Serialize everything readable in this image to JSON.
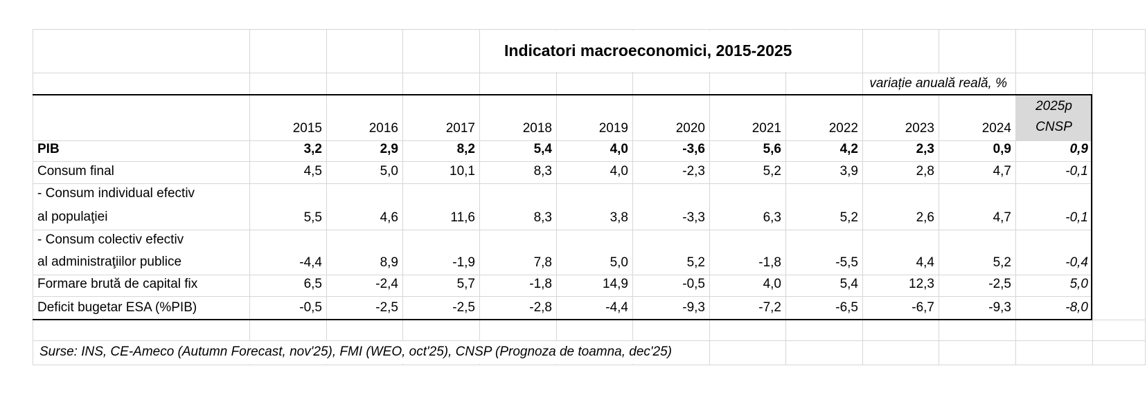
{
  "colors": {
    "background": "#ffffff",
    "grid_line": "#d6d6d6",
    "header_fill": "#d9d9d9",
    "thick_border": "#000000",
    "text": "#000000"
  },
  "table": {
    "title": "Indicatori macroeconomici, 2015-2025",
    "subtitle": "variație anuală reală, %",
    "columns": [
      "2015",
      "2016",
      "2017",
      "2018",
      "2019",
      "2020",
      "2021",
      "2022",
      "2023",
      "2024"
    ],
    "forecast_column": {
      "line1": "2025p",
      "line2": "CNSP"
    },
    "rows": [
      {
        "label": [
          "PIB"
        ],
        "bold": true,
        "values": [
          "3,2",
          "2,9",
          "8,2",
          "5,4",
          "4,0",
          "-3,6",
          "5,6",
          "4,2",
          "2,3",
          "0,9",
          "0,9"
        ]
      },
      {
        "label": [
          "Consum final"
        ],
        "bold": false,
        "values": [
          "4,5",
          "5,0",
          "10,1",
          "8,3",
          "4,0",
          "-2,3",
          "5,2",
          "3,9",
          "2,8",
          "4,7",
          "-0,1"
        ]
      },
      {
        "label": [
          "- Consum individual efectiv",
          "al populaţiei"
        ],
        "bold": false,
        "values": [
          "5,5",
          "4,6",
          "11,6",
          "8,3",
          "3,8",
          "-3,3",
          "6,3",
          "5,2",
          "2,6",
          "4,7",
          "-0,1"
        ]
      },
      {
        "label": [
          "- Consum colectiv efectiv",
          "al administraţiilor publice"
        ],
        "bold": false,
        "values": [
          "-4,4",
          "8,9",
          "-1,9",
          "7,8",
          "5,0",
          "5,2",
          "-1,8",
          "-5,5",
          "4,4",
          "5,2",
          "-0,4"
        ]
      },
      {
        "label": [
          "Formare brută de capital fix"
        ],
        "bold": false,
        "values": [
          "6,5",
          "-2,4",
          "5,7",
          "-1,8",
          "14,9",
          "-0,5",
          "4,0",
          "5,4",
          "12,3",
          "-2,5",
          "5,0"
        ]
      },
      {
        "label": [
          "Deficit bugetar ESA (%PIB)"
        ],
        "bold": false,
        "values": [
          "-0,5",
          "-2,5",
          "-2,5",
          "-2,8",
          "-4,4",
          "-9,3",
          "-7,2",
          "-6,5",
          "-6,7",
          "-9,3",
          "-8,0"
        ]
      }
    ],
    "source_note": "Surse: INS, CE-Ameco (Autumn Forecast, nov'25), FMI (WEO, oct'25), CNSP (Prognoza de toamna, dec'25)"
  },
  "chart_data": {
    "type": "table",
    "title": "Indicatori macroeconomici, 2015-2025",
    "unit": "variație anuală reală, %",
    "categories": [
      "2015",
      "2016",
      "2017",
      "2018",
      "2019",
      "2020",
      "2021",
      "2022",
      "2023",
      "2024",
      "2025p CNSP"
    ],
    "series": [
      {
        "name": "PIB",
        "values": [
          3.2,
          2.9,
          8.2,
          5.4,
          4.0,
          -3.6,
          5.6,
          4.2,
          2.3,
          0.9,
          0.9
        ]
      },
      {
        "name": "Consum final",
        "values": [
          4.5,
          5.0,
          10.1,
          8.3,
          4.0,
          -2.3,
          5.2,
          3.9,
          2.8,
          4.7,
          -0.1
        ]
      },
      {
        "name": "- Consum individual efectiv al populaţiei",
        "values": [
          5.5,
          4.6,
          11.6,
          8.3,
          3.8,
          -3.3,
          6.3,
          5.2,
          2.6,
          4.7,
          -0.1
        ]
      },
      {
        "name": "- Consum colectiv efectiv al administraţiilor publice",
        "values": [
          -4.4,
          8.9,
          -1.9,
          7.8,
          5.0,
          5.2,
          -1.8,
          -5.5,
          4.4,
          5.2,
          -0.4
        ]
      },
      {
        "name": "Formare brută de capital fix",
        "values": [
          6.5,
          -2.4,
          5.7,
          -1.8,
          14.9,
          -0.5,
          4.0,
          5.4,
          12.3,
          -2.5,
          5.0
        ]
      },
      {
        "name": "Deficit bugetar ESA (%PIB)",
        "values": [
          -0.5,
          -2.5,
          -2.5,
          -2.8,
          -4.4,
          -9.3,
          -7.2,
          -6.5,
          -6.7,
          -9.3,
          -8.0
        ]
      }
    ],
    "notes": "2025p column is a forecast (CNSP); values shown in italics",
    "source": "Surse: INS, CE-Ameco (Autumn Forecast, nov'25), FMI (WEO, oct'25), CNSP (Prognoza de toamna, dec'25)"
  }
}
